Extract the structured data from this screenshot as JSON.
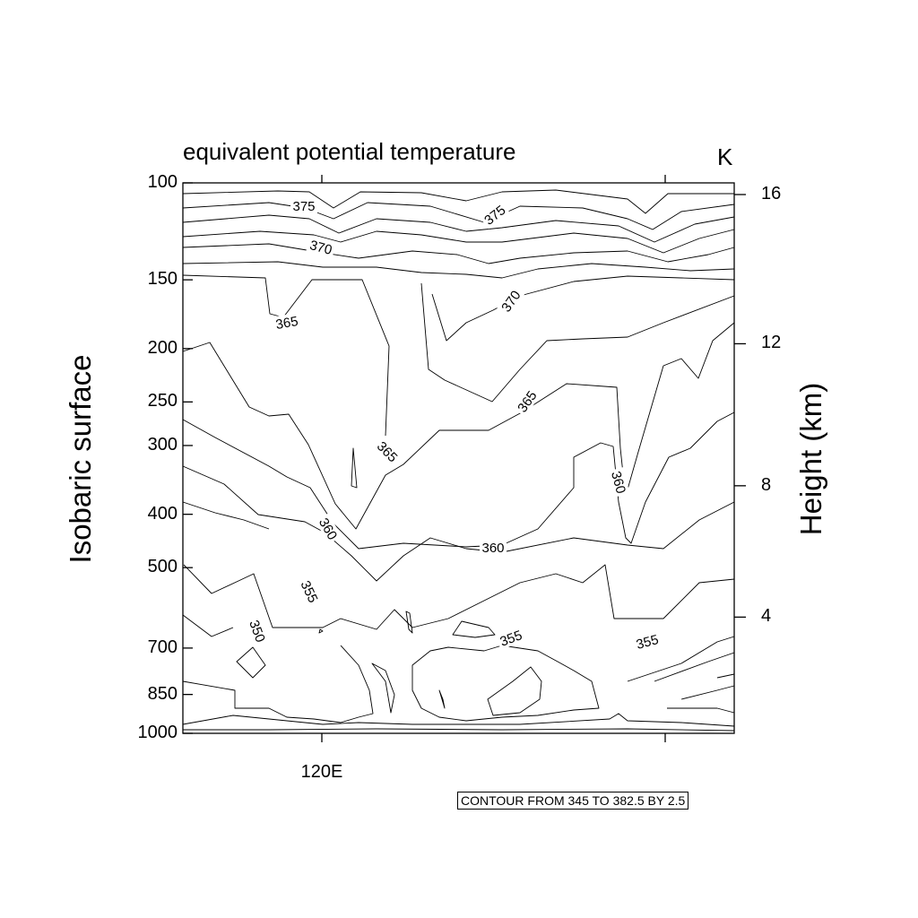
{
  "chart_data": {
    "type": "contour",
    "title": "equivalent potential temperature",
    "units": "K",
    "ylabel": "Isobaric surface",
    "y2label": "Height (km)",
    "footer": "CONTOUR FROM 345 TO 382.5 BY 2.5",
    "x_ticks": [
      {
        "value": 120,
        "label": "120E"
      }
    ],
    "y_ticks": [
      100,
      150,
      200,
      250,
      300,
      400,
      500,
      700,
      850,
      1000
    ],
    "y_range": [
      1000,
      100
    ],
    "y_scale": "log",
    "y2_ticks": [
      {
        "value": 4,
        "pressure": 615,
        "label": "4"
      },
      {
        "value": 8,
        "pressure": 355,
        "label": "8"
      },
      {
        "value": 12,
        "pressure": 196,
        "label": "12"
      },
      {
        "value": 16,
        "pressure": 105,
        "label": "16"
      }
    ],
    "contour_range": {
      "min": 345,
      "max": 382.5,
      "step": 2.5
    },
    "contour_labels": [
      "375",
      "375",
      "370",
      "370",
      "365",
      "365",
      "365",
      "365",
      "360",
      "360",
      "360",
      "355",
      "355",
      "355",
      "350"
    ],
    "grid": false
  }
}
